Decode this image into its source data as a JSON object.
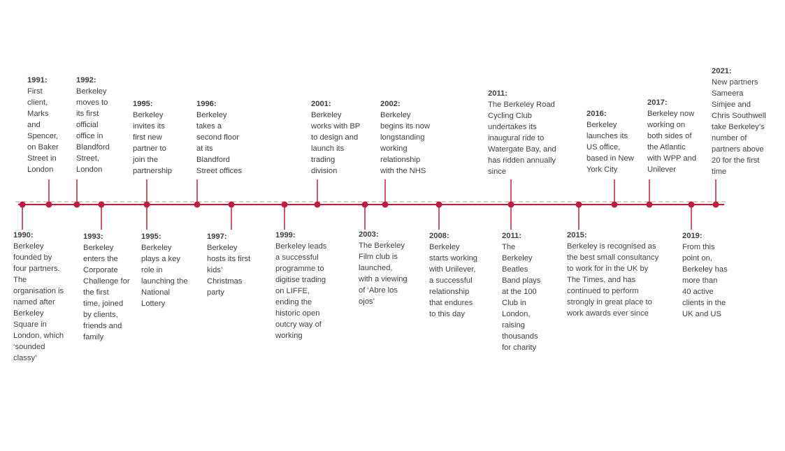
{
  "colors": {
    "accent": "#be1e3c",
    "axis_line": "#be1e3c",
    "dashed_line": "#a0a0a0",
    "text": "#404040"
  },
  "above": [
    {
      "year": "1991:",
      "text": "First\nclient,\nMarks\nand\nSpencer,\non Baker\nStreet in\nLondon"
    },
    {
      "year": "1992:",
      "text": "Berkeley\nmoves to\nits first\nofficial\noffice in\nBlandford\nStreet,\nLondon"
    },
    {
      "year": "1995:",
      "text": "Berkeley\ninvites its\nfirst new\npartner to\njoin the\npartnership"
    },
    {
      "year": "1996:",
      "text": "Berkeley\ntakes a\nsecond floor\nat its\nBlandford\nStreet offices"
    },
    {
      "year": "2001:",
      "text": "Berkeley\nworks with BP\nto design and\nlaunch its\ntrading\ndivision"
    },
    {
      "year": "2002:",
      "text": "Berkeley\nbegins its now\nlongstanding\nworking\nrelationship\nwith the NHS"
    },
    {
      "year": "2011:",
      "text": "The Berkeley Road\nCycling Club\nundertakes its\ninaugural ride to\nWatergate Bay, and\nhas ridden annually\nsince"
    },
    {
      "year": "2016:",
      "text": "Berkeley\nlaunches its\nUS office,\nbased in New\nYork City"
    },
    {
      "year": "2017:",
      "text": "Berkeley now\nworking on\nboth sides of\nthe Atlantic\nwith WPP and\nUnilever"
    },
    {
      "year": "2021:",
      "text": "New partners\nSameera\nSimjee and\nChris Southwell\ntake Berkeley’s\nnumber of\npartners above\n20 for the first\ntime"
    }
  ],
  "below": [
    {
      "year": "1990:",
      "text": "Berkeley\nfounded by\nfour partners.\nThe\norganisation is\nnamed after\nBerkeley\nSquare in\nLondon, which\n‘sounded\nclassy’"
    },
    {
      "year": "1993:",
      "text": "Berkeley\nenters the\nCorporate\nChallenge for\nthe first\ntime, joined\nby clients,\nfriends and\nfamily"
    },
    {
      "year": "1995:",
      "text": "Berkeley\nplays a key\nrole in\nlaunching the\nNational\nLottery"
    },
    {
      "year": "1997:",
      "text": "Berkeley\nhosts its first\nkids’\nChristmas\nparty"
    },
    {
      "year": "1999:",
      "text": "Berkeley leads\na successful\nprogramme to\ndigitise trading\non LIFFE,\nending the\nhistoric open\noutcry way of\nworking"
    },
    {
      "year": "2003:",
      "text": "The Berkeley\nFilm club is\nlaunched,\nwith a viewing\nof ‘Abre los\nojos’"
    },
    {
      "year": "2008:",
      "text": "Berkeley\nstarts working\nwith Unilever,\na successful\nrelationship\nthat endures\nto this day"
    },
    {
      "year": "2011:",
      "text": "The\nBerkeley\nBeatles\nBand plays\nat the 100\nClub in\nLondon,\nraising\nthousands\nfor charity"
    },
    {
      "year": "2015:",
      "text": "Berkeley  is recognised as\nthe best small consultancy\nto work for in the UK by\nThe Times, and has\ncontinued to perform\nstrongly in great place to\nwork awards ever since"
    },
    {
      "year": "2019:",
      "text": "From this\npoint on,\nBerkeley has\nmore than\n40 active\nclients in the\nUK and US"
    }
  ]
}
